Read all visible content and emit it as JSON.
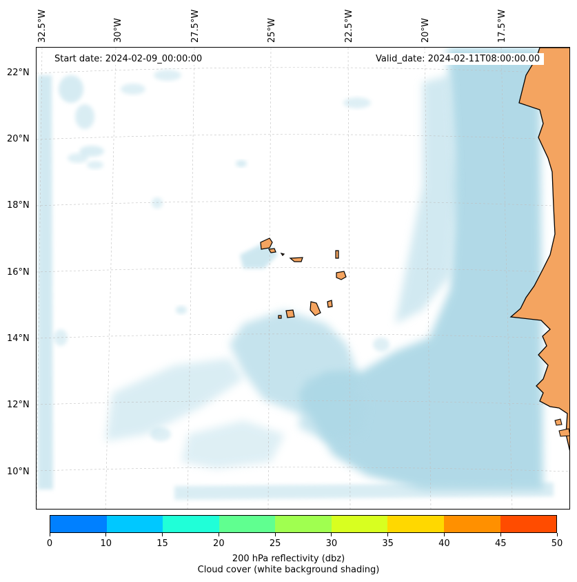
{
  "map": {
    "start_date": "Start date: 2024-02-09_00:00:00",
    "valid_date": "Valid_date: 2024-02-11T08:00:00.00",
    "lon_labels": [
      "32.5°W",
      "30°W",
      "27.5°W",
      "25°W",
      "22.5°W",
      "20°W",
      "17.5°W"
    ],
    "lat_labels": [
      "22°N",
      "20°N",
      "18°N",
      "16°N",
      "14°N",
      "12°N",
      "10°N"
    ],
    "land_color": "#f4a460",
    "cloud_color": "#add8e6",
    "grid": true
  },
  "colorbar": {
    "ticks": [
      "0",
      "10",
      "15",
      "20",
      "25",
      "30",
      "35",
      "40",
      "45",
      "50"
    ],
    "colors": [
      "#0080ff",
      "#00c8ff",
      "#20ffd8",
      "#60ff90",
      "#a0ff50",
      "#d8ff20",
      "#ffd800",
      "#ff9000",
      "#ff4c00"
    ],
    "label": "200 hPa reflectivity (dbz)",
    "sublabel": "Cloud cover (white background shading)"
  }
}
